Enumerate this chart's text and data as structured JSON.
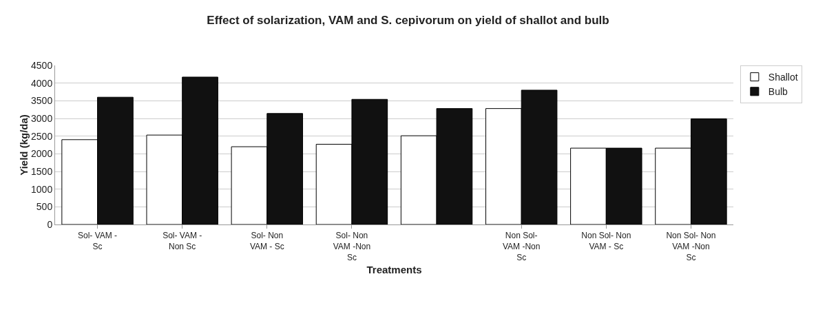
{
  "chart_data": {
    "type": "bar",
    "title": "Effect of solarization, VAM and S. cepivorum on yield of shallot and bulb",
    "xlabel": "Treatments",
    "ylabel": "Yield (kg/da)",
    "categories": [
      "Sol- VAM -\nSc",
      "Sol- VAM -\nNon Sc",
      "Sol- Non\nVAM - Sc",
      "Sol- Non\nVAM -Non\nSc",
      null,
      "Non Sol-\nVAM -Non\nSc",
      "Non Sol- Non\nVAM - Sc",
      "Non Sol- Non\nVAM -Non\nSc"
    ],
    "series": [
      {
        "name": "Shallot",
        "color": "#ffffff",
        "values": [
          2400,
          2530,
          2200,
          2270,
          2510,
          3280,
          2160,
          2160
        ]
      },
      {
        "name": "Bulb",
        "color": "#111111",
        "values": [
          3600,
          4170,
          3140,
          3540,
          3280,
          3800,
          2160,
          2990
        ]
      }
    ],
    "ylim": [
      0,
      4500
    ],
    "yticks": [
      0,
      500,
      1000,
      1500,
      2000,
      2500,
      3000,
      3500,
      4000,
      4500
    ],
    "grid": "y",
    "legend": "top right"
  }
}
